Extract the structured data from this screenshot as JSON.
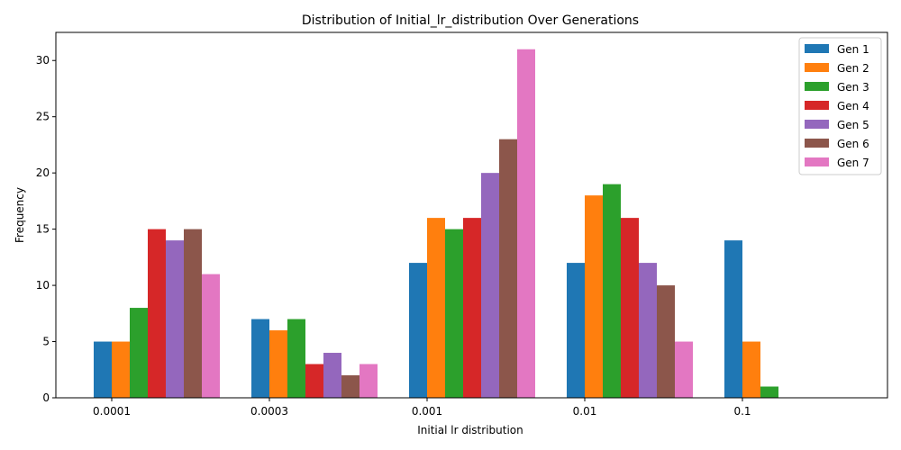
{
  "chart_data": {
    "type": "bar",
    "title": "Distribution of Initial_lr_distribution Over Generations",
    "xlabel": "Initial lr distribution",
    "ylabel": "Frequency",
    "categories": [
      "0.0001",
      "0.0003",
      "0.001",
      "0.01",
      "0.1"
    ],
    "ylim": [
      0,
      32.5
    ],
    "yticks": [
      0,
      5,
      10,
      15,
      20,
      25,
      30
    ],
    "grid": false,
    "legend_position": "top-right",
    "series": [
      {
        "name": "Gen 1",
        "color": "#1f77b4",
        "values": [
          5,
          7,
          12,
          12,
          14
        ]
      },
      {
        "name": "Gen 2",
        "color": "#ff7f0e",
        "values": [
          5,
          6,
          16,
          18,
          5
        ]
      },
      {
        "name": "Gen 3",
        "color": "#2ca02c",
        "values": [
          8,
          7,
          15,
          19,
          1
        ]
      },
      {
        "name": "Gen 4",
        "color": "#d62728",
        "values": [
          15,
          3,
          16,
          16,
          0
        ]
      },
      {
        "name": "Gen 5",
        "color": "#9467bd",
        "values": [
          14,
          4,
          20,
          12,
          0
        ]
      },
      {
        "name": "Gen 6",
        "color": "#8c564b",
        "values": [
          15,
          2,
          23,
          10,
          0
        ]
      },
      {
        "name": "Gen 7",
        "color": "#e377c2",
        "values": [
          11,
          3,
          31,
          5,
          0
        ]
      }
    ]
  }
}
